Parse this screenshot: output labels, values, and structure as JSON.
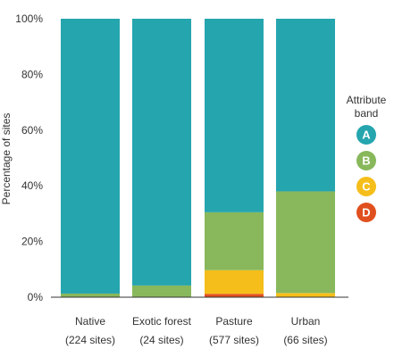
{
  "chart_data": {
    "type": "bar",
    "stacked": true,
    "categories": [
      "Native",
      "Exotic forest",
      "Pasture",
      "Urban"
    ],
    "category_sublabels": [
      "(224 sites)",
      "(24 sites)",
      "(577 sites)",
      "(66 sites)"
    ],
    "ylabel": "Percentage of sites",
    "xlabel": "",
    "ylim": [
      0,
      100
    ],
    "yticks": [
      "0%",
      "20%",
      "40%",
      "60%",
      "80%",
      "100%"
    ],
    "ytick_values": [
      0,
      20,
      40,
      60,
      80,
      100
    ],
    "grid": false,
    "legend": {
      "title_line1": "Attribute",
      "title_line2": "band",
      "placement": "right"
    },
    "series": [
      {
        "name": "D",
        "color": "#e0501e",
        "values": [
          0,
          0,
          1.2,
          0
        ]
      },
      {
        "name": "C",
        "color": "#f5be1a",
        "values": [
          0,
          0,
          8.5,
          1.5
        ]
      },
      {
        "name": "B",
        "color": "#88b85b",
        "values": [
          1.3,
          4.2,
          20.8,
          36.5
        ]
      },
      {
        "name": "A",
        "color": "#25a5ae",
        "values": [
          98.7,
          95.8,
          69.5,
          62.0
        ]
      }
    ]
  }
}
